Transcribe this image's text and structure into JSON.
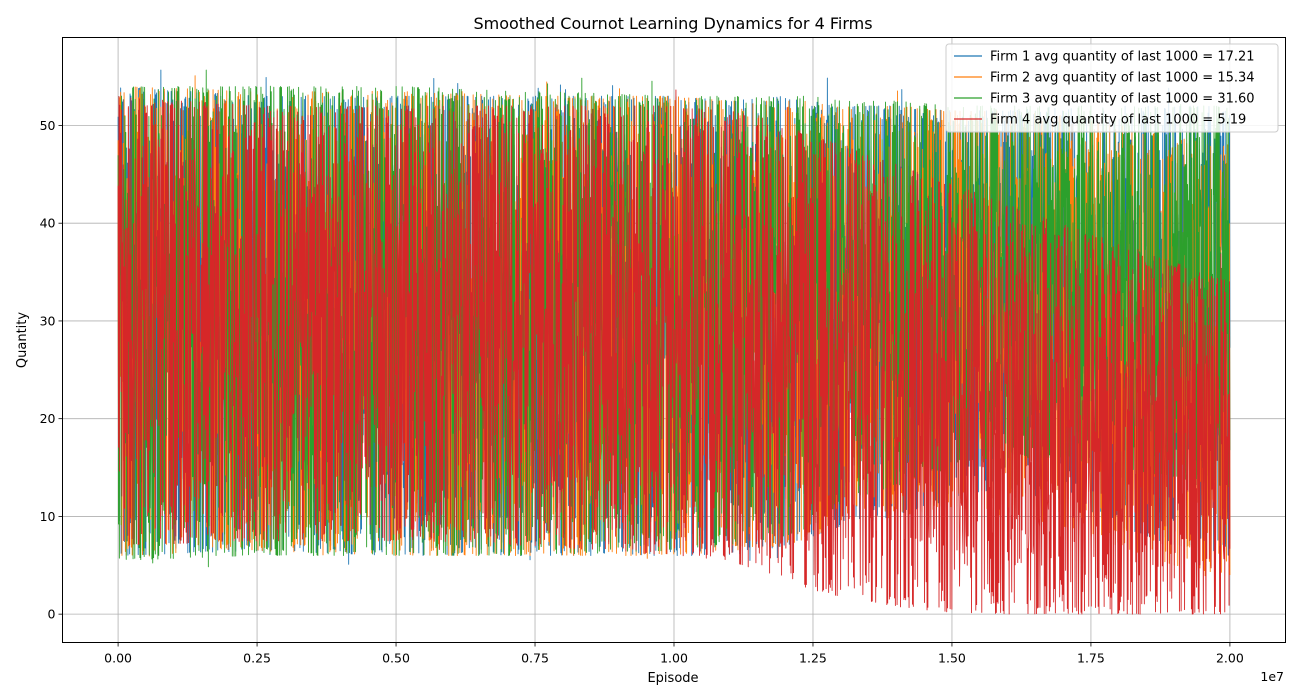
{
  "chart_data": {
    "type": "line",
    "title": "Smoothed Cournot Learning Dynamics for 4 Firms",
    "xlabel": "Episode",
    "ylabel": "Quantity",
    "x_offset_label": "1e7",
    "xlim": [
      -0.1,
      2.1
    ],
    "ylim": [
      -2.9,
      59
    ],
    "xticks": [
      0.0,
      0.25,
      0.5,
      0.75,
      1.0,
      1.25,
      1.5,
      1.75,
      2.0
    ],
    "xtick_labels": [
      "0.00",
      "0.25",
      "0.50",
      "0.75",
      "1.00",
      "1.25",
      "1.50",
      "1.75",
      "2.00"
    ],
    "yticks": [
      0,
      10,
      20,
      30,
      40,
      50
    ],
    "ytick_labels": [
      "0",
      "10",
      "20",
      "30",
      "40",
      "50"
    ],
    "grid": true,
    "legend_position": "top-right",
    "series": [
      {
        "name": "Firm 1 avg quantity of last 1000 = 17.21",
        "color": "#1f77b4",
        "envelope": {
          "x": [
            0.0,
            0.25,
            0.5,
            0.75,
            1.0,
            1.1,
            1.2,
            1.25,
            1.3,
            1.4,
            1.5,
            1.6,
            1.7,
            1.8,
            1.9,
            2.0
          ],
          "upper": [
            54,
            53,
            53,
            53,
            53,
            52.5,
            53,
            52.5,
            52,
            52,
            51.5,
            51.5,
            52,
            52,
            52,
            52
          ],
          "lower": [
            6,
            6.5,
            6,
            6,
            6,
            6,
            7,
            8,
            9,
            10,
            12,
            13,
            11,
            9,
            7,
            6
          ]
        }
      },
      {
        "name": "Firm 2 avg quantity of last 1000 = 15.34",
        "color": "#ff7f0e",
        "envelope": {
          "x": [
            0.0,
            0.25,
            0.5,
            0.75,
            1.0,
            1.1,
            1.2,
            1.25,
            1.3,
            1.4,
            1.5,
            1.6,
            1.7,
            1.8,
            1.9,
            2.0
          ],
          "upper": [
            54,
            53.5,
            53.5,
            53,
            53,
            52.5,
            52.5,
            52.5,
            52,
            52,
            51.5,
            51.5,
            51,
            50,
            49,
            48
          ],
          "lower": [
            6,
            6.5,
            6,
            6,
            6,
            6.5,
            7,
            8,
            9,
            10,
            11,
            10,
            9,
            7,
            5,
            4
          ]
        }
      },
      {
        "name": "Firm 3 avg quantity of last 1000 = 31.60",
        "color": "#2ca02c",
        "envelope": {
          "x": [
            0.0,
            0.25,
            0.5,
            0.75,
            1.0,
            1.1,
            1.2,
            1.25,
            1.3,
            1.4,
            1.5,
            1.6,
            1.7,
            1.8,
            1.9,
            2.0
          ],
          "upper": [
            54,
            54,
            54,
            53.5,
            53,
            53,
            53,
            53,
            52.5,
            52.5,
            52,
            52,
            52,
            52,
            52,
            52
          ],
          "lower": [
            5.5,
            6,
            6,
            6,
            6.5,
            7,
            8,
            9,
            11,
            13,
            15,
            16,
            16,
            15,
            14,
            13
          ]
        }
      },
      {
        "name": "Firm 4 avg quantity of last 1000 = 5.19",
        "color": "#d62728",
        "envelope": {
          "x": [
            0.0,
            0.25,
            0.5,
            0.75,
            1.0,
            1.1,
            1.15,
            1.2,
            1.25,
            1.3,
            1.35,
            1.4,
            1.45,
            1.5,
            1.55,
            1.6,
            1.7,
            1.8,
            1.9,
            2.0
          ],
          "upper": [
            53,
            52,
            52,
            52,
            52,
            51.5,
            51,
            50,
            49,
            48,
            47,
            46,
            45,
            44,
            43,
            42,
            40,
            38,
            36,
            34
          ],
          "lower": [
            7,
            7.5,
            7.5,
            7,
            6,
            5.5,
            4.5,
            3.5,
            2.5,
            1.8,
            1.2,
            0.8,
            0.4,
            0.2,
            0.1,
            0,
            0,
            0,
            0,
            0
          ]
        }
      }
    ]
  }
}
